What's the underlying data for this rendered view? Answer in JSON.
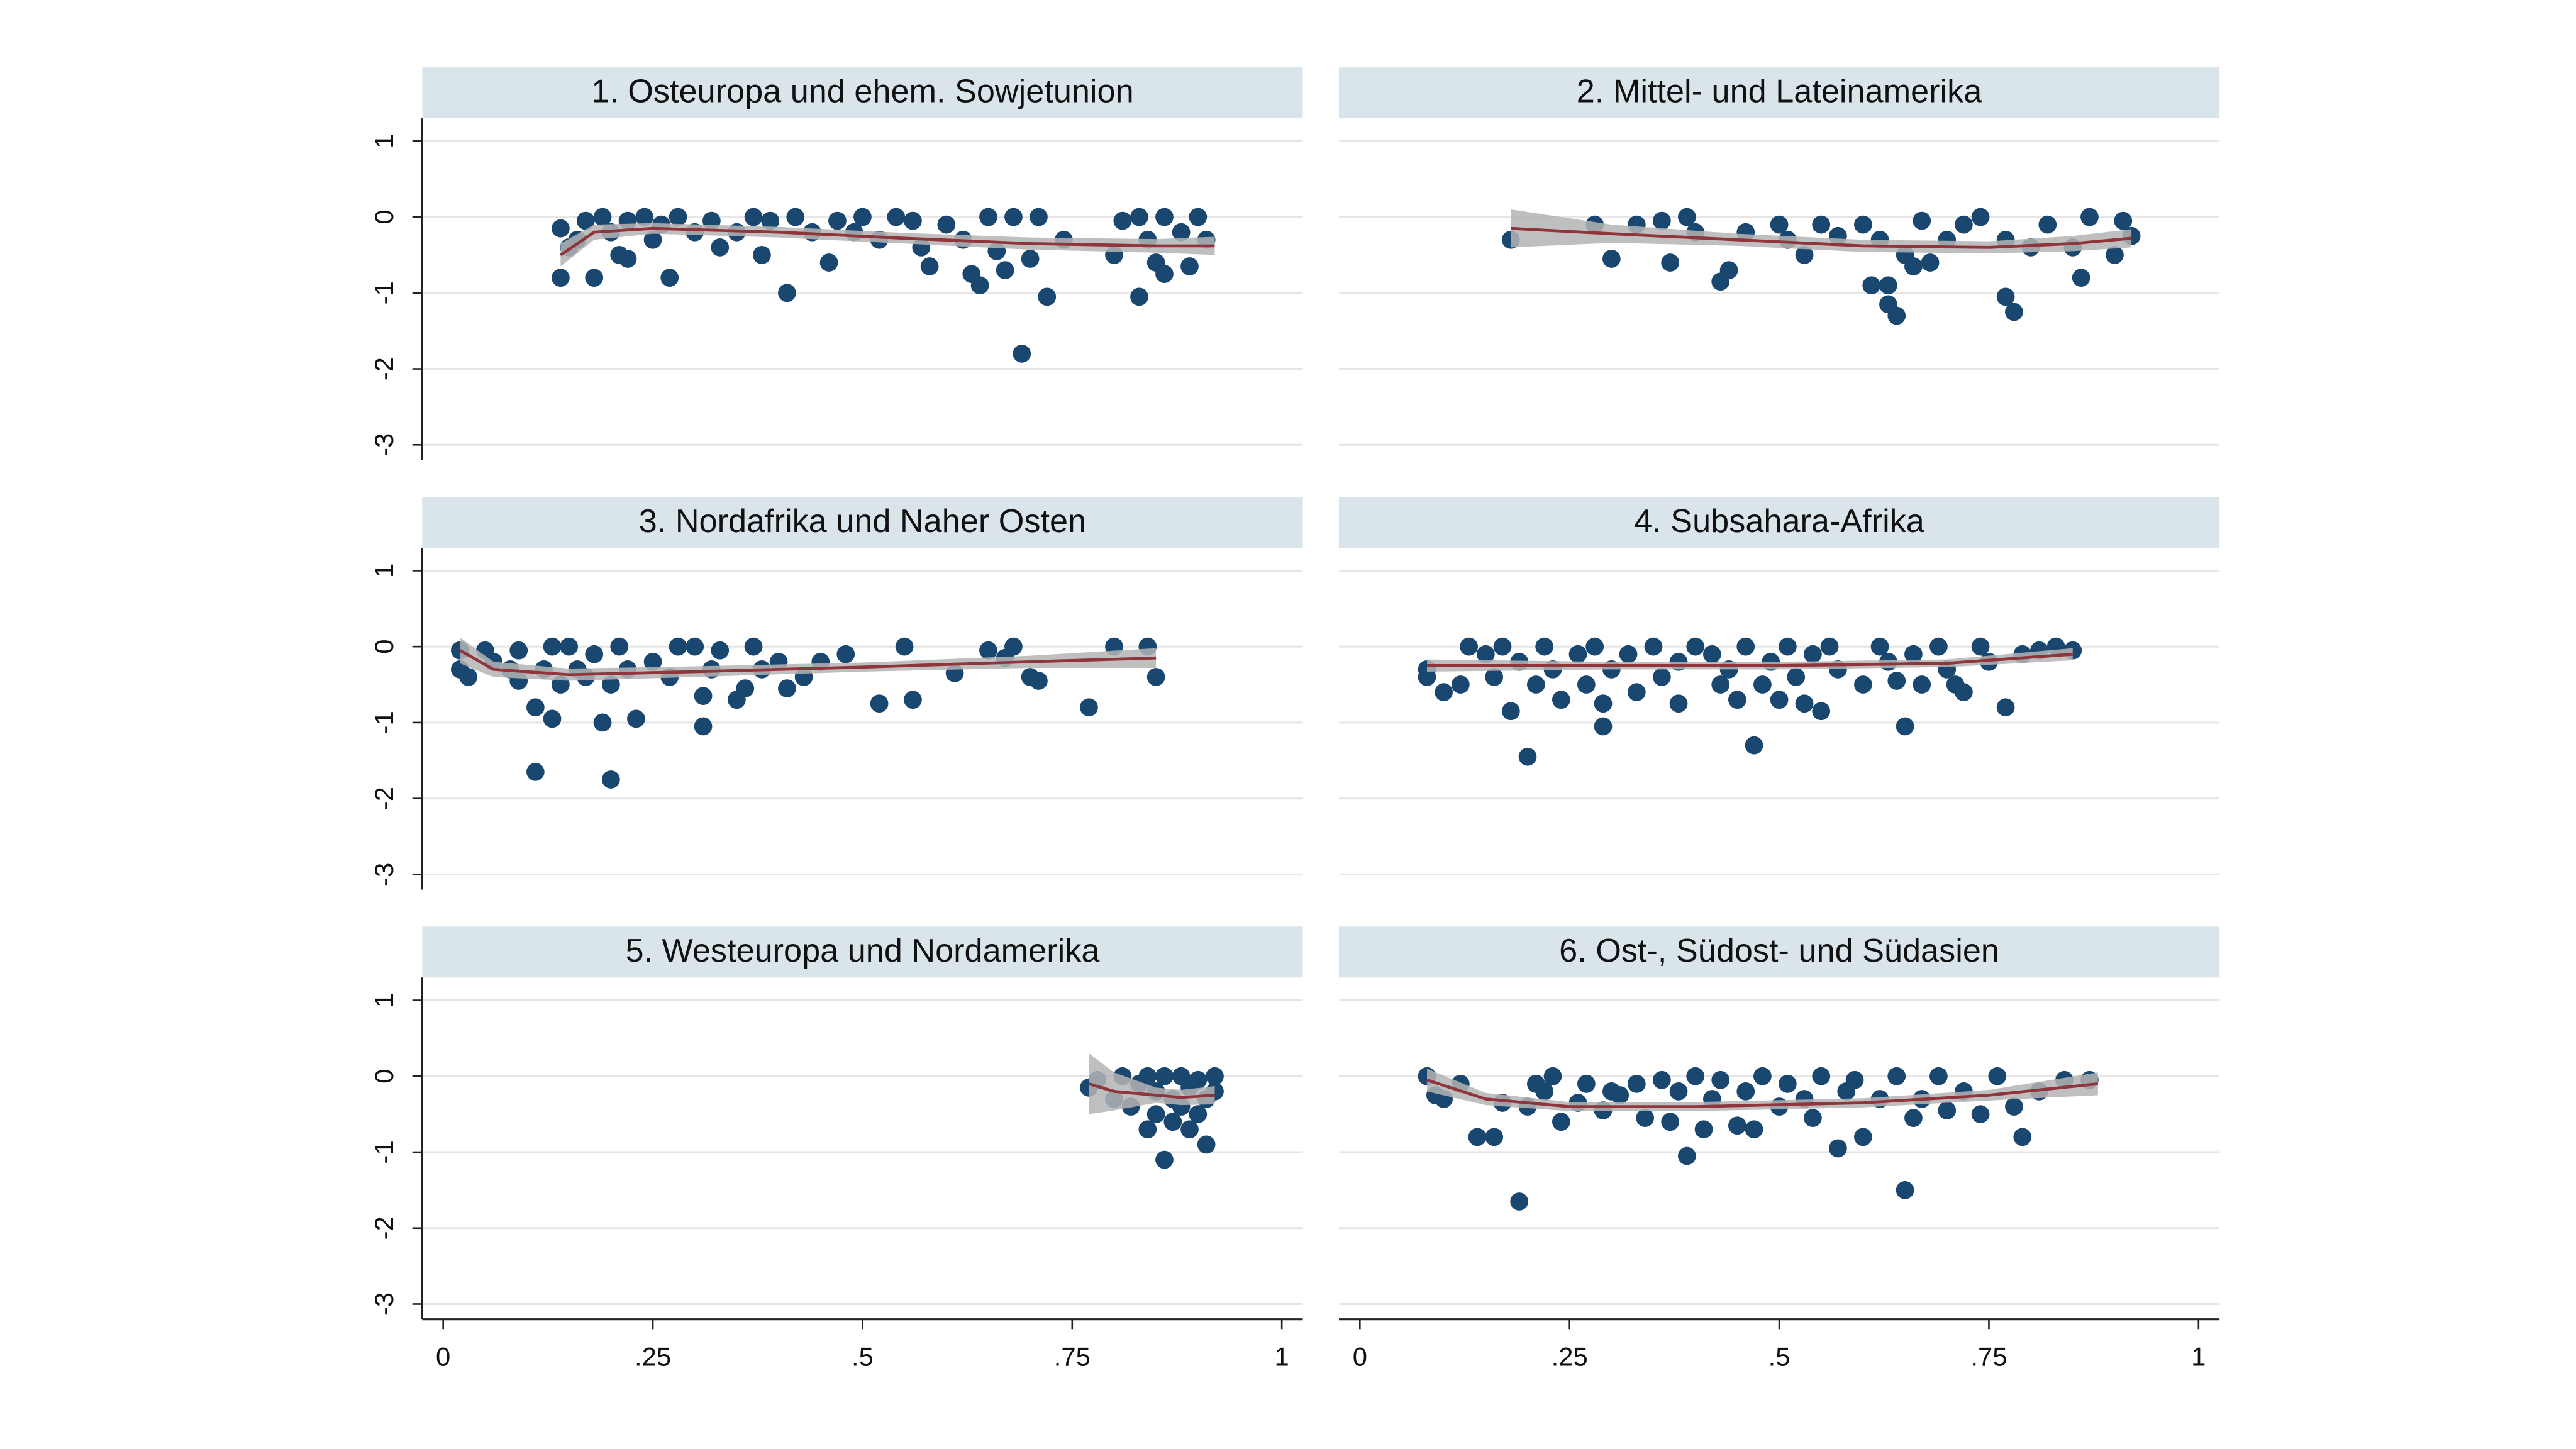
{
  "chart_data": [
    {
      "type": "scatter",
      "title": "1. Osteuropa und ehem. Sowjetunion",
      "xlim": [
        -0.025,
        1.025
      ],
      "ylim": [
        -3.2,
        1.3
      ],
      "yticks": [
        1,
        0,
        -1,
        -2,
        -3
      ],
      "ytick_labels": true,
      "grid": true,
      "series": [
        {
          "type": "band",
          "color": "#b4b4b4",
          "x": [
            0.14,
            0.18,
            0.25,
            0.4,
            0.55,
            0.7,
            0.85,
            0.92
          ],
          "lower": [
            -0.65,
            -0.3,
            -0.22,
            -0.27,
            -0.35,
            -0.43,
            -0.47,
            -0.5
          ],
          "upper": [
            -0.35,
            -0.1,
            -0.08,
            -0.13,
            -0.21,
            -0.27,
            -0.29,
            -0.26
          ]
        },
        {
          "type": "line",
          "color": "#90353b",
          "x": [
            0.14,
            0.18,
            0.25,
            0.4,
            0.55,
            0.7,
            0.85,
            0.92
          ],
          "values": [
            -0.5,
            -0.2,
            -0.15,
            -0.2,
            -0.28,
            -0.35,
            -0.38,
            -0.38
          ]
        },
        {
          "type": "scatter",
          "color": "#1a476f",
          "x": [
            0.14,
            0.14,
            0.15,
            0.16,
            0.17,
            0.18,
            0.19,
            0.2,
            0.21,
            0.22,
            0.22,
            0.24,
            0.25,
            0.26,
            0.27,
            0.28,
            0.3,
            0.32,
            0.33,
            0.35,
            0.37,
            0.38,
            0.39,
            0.41,
            0.42,
            0.44,
            0.46,
            0.47,
            0.49,
            0.5,
            0.52,
            0.54,
            0.56,
            0.57,
            0.58,
            0.6,
            0.62,
            0.63,
            0.64,
            0.65,
            0.66,
            0.67,
            0.68,
            0.69,
            0.7,
            0.71,
            0.72,
            0.74,
            0.8,
            0.81,
            0.83,
            0.83,
            0.84,
            0.85,
            0.86,
            0.86,
            0.88,
            0.89,
            0.9,
            0.91
          ],
          "values": [
            -0.15,
            -0.8,
            -0.4,
            -0.3,
            -0.05,
            -0.8,
            0,
            -0.2,
            -0.5,
            -0.05,
            -0.55,
            0,
            -0.3,
            -0.1,
            -0.8,
            0,
            -0.2,
            -0.05,
            -0.4,
            -0.2,
            0,
            -0.5,
            -0.05,
            -1.0,
            0,
            -0.2,
            -0.6,
            -0.05,
            -0.2,
            0,
            -0.3,
            0,
            -0.05,
            -0.4,
            -0.65,
            -0.1,
            -0.3,
            -0.75,
            -0.9,
            0,
            -0.45,
            -0.7,
            0,
            -1.8,
            -0.55,
            0,
            -1.05,
            -0.3,
            -0.5,
            -0.05,
            0,
            -1.05,
            -0.3,
            -0.6,
            0,
            -0.75,
            -0.2,
            -0.65,
            0,
            -0.3
          ]
        }
      ]
    },
    {
      "type": "scatter",
      "title": "2. Mittel- und Lateinamerika",
      "xlim": [
        -0.025,
        1.025
      ],
      "ylim": [
        -3.2,
        1.3
      ],
      "yticks": [
        1,
        0,
        -1,
        -2,
        -3
      ],
      "ytick_labels": false,
      "grid": true,
      "series": [
        {
          "type": "band",
          "color": "#b4b4b4",
          "x": [
            0.18,
            0.3,
            0.45,
            0.6,
            0.75,
            0.85,
            0.92
          ],
          "lower": [
            -0.4,
            -0.34,
            -0.38,
            -0.46,
            -0.48,
            -0.45,
            -0.4
          ],
          "upper": [
            0.1,
            -0.1,
            -0.22,
            -0.3,
            -0.32,
            -0.25,
            -0.16
          ]
        },
        {
          "type": "line",
          "color": "#90353b",
          "x": [
            0.18,
            0.3,
            0.45,
            0.6,
            0.75,
            0.85,
            0.92
          ],
          "values": [
            -0.15,
            -0.22,
            -0.3,
            -0.38,
            -0.4,
            -0.35,
            -0.28
          ]
        },
        {
          "type": "scatter",
          "color": "#1a476f",
          "x": [
            0.18,
            0.28,
            0.3,
            0.33,
            0.36,
            0.37,
            0.39,
            0.4,
            0.43,
            0.44,
            0.46,
            0.5,
            0.51,
            0.53,
            0.55,
            0.57,
            0.6,
            0.61,
            0.62,
            0.63,
            0.63,
            0.64,
            0.65,
            0.66,
            0.67,
            0.68,
            0.7,
            0.72,
            0.74,
            0.77,
            0.77,
            0.78,
            0.8,
            0.82,
            0.85,
            0.86,
            0.87,
            0.9,
            0.91,
            0.92
          ],
          "values": [
            -0.3,
            -0.1,
            -0.55,
            -0.1,
            -0.05,
            -0.6,
            0,
            -0.2,
            -0.85,
            -0.7,
            -0.2,
            -0.1,
            -0.3,
            -0.5,
            -0.1,
            -0.25,
            -0.1,
            -0.9,
            -0.3,
            -0.9,
            -1.15,
            -1.3,
            -0.5,
            -0.65,
            -0.05,
            -0.6,
            -0.3,
            -0.1,
            0,
            -0.3,
            -1.05,
            -1.25,
            -0.4,
            -0.1,
            -0.4,
            -0.8,
            0,
            -0.5,
            -0.05,
            -0.25
          ]
        }
      ]
    },
    {
      "type": "scatter",
      "title": "3. Nordafrika und Naher Osten",
      "xlim": [
        -0.025,
        1.025
      ],
      "ylim": [
        -3.2,
        1.3
      ],
      "yticks": [
        1,
        0,
        -1,
        -2,
        -3
      ],
      "ytick_labels": true,
      "grid": true,
      "series": [
        {
          "type": "band",
          "color": "#b4b4b4",
          "x": [
            0.02,
            0.06,
            0.15,
            0.3,
            0.5,
            0.7,
            0.85
          ],
          "lower": [
            -0.22,
            -0.4,
            -0.45,
            -0.4,
            -0.33,
            -0.28,
            -0.28
          ],
          "upper": [
            0.12,
            -0.2,
            -0.29,
            -0.26,
            -0.21,
            -0.12,
            -0.02
          ]
        },
        {
          "type": "line",
          "color": "#90353b",
          "x": [
            0.02,
            0.06,
            0.15,
            0.3,
            0.5,
            0.7,
            0.85
          ],
          "values": [
            -0.05,
            -0.3,
            -0.37,
            -0.33,
            -0.27,
            -0.2,
            -0.15
          ]
        },
        {
          "type": "scatter",
          "color": "#1a476f",
          "x": [
            0.02,
            0.02,
            0.03,
            0.05,
            0.06,
            0.08,
            0.09,
            0.09,
            0.11,
            0.11,
            0.12,
            0.13,
            0.13,
            0.14,
            0.15,
            0.16,
            0.17,
            0.18,
            0.19,
            0.2,
            0.2,
            0.21,
            0.22,
            0.23,
            0.25,
            0.27,
            0.28,
            0.3,
            0.31,
            0.31,
            0.32,
            0.33,
            0.35,
            0.36,
            0.37,
            0.38,
            0.4,
            0.41,
            0.43,
            0.45,
            0.48,
            0.52,
            0.55,
            0.56,
            0.61,
            0.65,
            0.67,
            0.68,
            0.7,
            0.71,
            0.77,
            0.8,
            0.84,
            0.85
          ],
          "values": [
            -0.05,
            -0.3,
            -0.4,
            -0.05,
            -0.2,
            -0.3,
            -0.45,
            -0.05,
            -0.8,
            -1.65,
            -0.3,
            0,
            -0.95,
            -0.5,
            0,
            -0.3,
            -0.4,
            -0.1,
            -1.0,
            -1.75,
            -0.5,
            0,
            -0.3,
            -0.95,
            -0.2,
            -0.4,
            0,
            0,
            -0.65,
            -1.05,
            -0.3,
            -0.05,
            -0.7,
            -0.55,
            0,
            -0.3,
            -0.2,
            -0.55,
            -0.4,
            -0.2,
            -0.1,
            -0.75,
            0,
            -0.7,
            -0.35,
            -0.05,
            -0.15,
            0,
            -0.4,
            -0.45,
            -0.8,
            0,
            0,
            -0.4
          ]
        }
      ]
    },
    {
      "type": "scatter",
      "title": "4. Subsahara-Afrika",
      "xlim": [
        -0.025,
        1.025
      ],
      "ylim": [
        -3.2,
        1.3
      ],
      "yticks": [
        1,
        0,
        -1,
        -2,
        -3
      ],
      "ytick_labels": false,
      "grid": true,
      "series": [
        {
          "type": "band",
          "color": "#b4b4b4",
          "x": [
            0.08,
            0.3,
            0.5,
            0.7,
            0.85
          ],
          "lower": [
            -0.33,
            -0.3,
            -0.3,
            -0.27,
            -0.18
          ],
          "upper": [
            -0.17,
            -0.2,
            -0.2,
            -0.17,
            -0.02
          ]
        },
        {
          "type": "line",
          "color": "#90353b",
          "x": [
            0.08,
            0.3,
            0.5,
            0.7,
            0.85
          ],
          "values": [
            -0.25,
            -0.25,
            -0.25,
            -0.22,
            -0.1
          ]
        },
        {
          "type": "scatter",
          "color": "#1a476f",
          "x": [
            0.08,
            0.08,
            0.1,
            0.12,
            0.13,
            0.15,
            0.16,
            0.17,
            0.18,
            0.19,
            0.2,
            0.21,
            0.22,
            0.23,
            0.24,
            0.26,
            0.27,
            0.28,
            0.29,
            0.29,
            0.3,
            0.32,
            0.33,
            0.35,
            0.36,
            0.38,
            0.38,
            0.4,
            0.42,
            0.43,
            0.44,
            0.45,
            0.46,
            0.47,
            0.48,
            0.49,
            0.5,
            0.51,
            0.52,
            0.53,
            0.54,
            0.55,
            0.56,
            0.57,
            0.6,
            0.62,
            0.63,
            0.64,
            0.65,
            0.66,
            0.67,
            0.69,
            0.7,
            0.71,
            0.72,
            0.74,
            0.75,
            0.77,
            0.79,
            0.81,
            0.83,
            0.85
          ],
          "values": [
            -0.3,
            -0.4,
            -0.6,
            -0.5,
            0,
            -0.1,
            -0.4,
            0,
            -0.85,
            -0.2,
            -1.45,
            -0.5,
            0,
            -0.3,
            -0.7,
            -0.1,
            -0.5,
            0,
            -0.75,
            -1.05,
            -0.3,
            -0.1,
            -0.6,
            0,
            -0.4,
            -0.2,
            -0.75,
            0,
            -0.1,
            -0.5,
            -0.3,
            -0.7,
            0,
            -1.3,
            -0.5,
            -0.2,
            -0.7,
            0,
            -0.4,
            -0.75,
            -0.1,
            -0.85,
            0,
            -0.3,
            -0.5,
            0,
            -0.2,
            -0.45,
            -1.05,
            -0.1,
            -0.5,
            0,
            -0.3,
            -0.5,
            -0.6,
            0,
            -0.2,
            -0.8,
            -0.1,
            -0.05,
            0,
            -0.05
          ]
        }
      ]
    },
    {
      "type": "scatter",
      "title": "5. Westeuropa und Nordamerika",
      "xlim": [
        -0.025,
        1.025
      ],
      "ylim": [
        -3.2,
        1.3
      ],
      "yticks": [
        1,
        0,
        -1,
        -2,
        -3
      ],
      "ytick_labels": true,
      "grid": true,
      "xticks": [
        0,
        {
          "value": 0.25,
          "label": ".25"
        },
        {
          "value": 0.5,
          "label": ".5"
        },
        {
          "value": 0.75,
          "label": ".75"
        },
        1
      ],
      "series": [
        {
          "type": "band",
          "color": "#b4b4b4",
          "x": [
            0.77,
            0.8,
            0.85,
            0.88,
            0.92
          ],
          "lower": [
            -0.5,
            -0.45,
            -0.35,
            -0.38,
            -0.37
          ],
          "upper": [
            0.3,
            0.05,
            -0.15,
            -0.18,
            -0.13
          ]
        },
        {
          "type": "line",
          "color": "#90353b",
          "x": [
            0.77,
            0.8,
            0.85,
            0.88,
            0.92
          ],
          "values": [
            -0.1,
            -0.2,
            -0.25,
            -0.28,
            -0.25
          ]
        },
        {
          "type": "scatter",
          "color": "#1a476f",
          "x": [
            0.77,
            0.78,
            0.8,
            0.81,
            0.82,
            0.83,
            0.84,
            0.84,
            0.85,
            0.85,
            0.86,
            0.86,
            0.87,
            0.87,
            0.88,
            0.88,
            0.89,
            0.89,
            0.9,
            0.9,
            0.91,
            0.91,
            0.92,
            0.92
          ],
          "values": [
            -0.15,
            -0.05,
            -0.3,
            0,
            -0.4,
            -0.1,
            -0.7,
            0,
            -0.5,
            -0.2,
            -1.1,
            0,
            -0.6,
            -0.3,
            0,
            -0.4,
            -0.15,
            -0.7,
            -0.05,
            -0.5,
            -0.3,
            -0.9,
            0,
            -0.2
          ]
        }
      ]
    },
    {
      "type": "scatter",
      "title": "6. Ost-, Südost- und Südasien",
      "xlim": [
        -0.025,
        1.025
      ],
      "ylim": [
        -3.2,
        1.3
      ],
      "yticks": [
        1,
        0,
        -1,
        -2,
        -3
      ],
      "ytick_labels": false,
      "grid": true,
      "xticks": [
        0,
        {
          "value": 0.25,
          "label": ".25"
        },
        {
          "value": 0.5,
          "label": ".5"
        },
        {
          "value": 0.75,
          "label": ".75"
        },
        1
      ],
      "series": [
        {
          "type": "band",
          "color": "#b4b4b4",
          "x": [
            0.08,
            0.15,
            0.25,
            0.4,
            0.6,
            0.75,
            0.88
          ],
          "lower": [
            -0.2,
            -0.38,
            -0.46,
            -0.46,
            -0.41,
            -0.32,
            -0.25
          ],
          "upper": [
            0.1,
            -0.22,
            -0.34,
            -0.34,
            -0.29,
            -0.18,
            0.05
          ]
        },
        {
          "type": "line",
          "color": "#90353b",
          "x": [
            0.08,
            0.15,
            0.25,
            0.4,
            0.6,
            0.75,
            0.88
          ],
          "values": [
            -0.05,
            -0.3,
            -0.4,
            -0.4,
            -0.35,
            -0.25,
            -0.1
          ]
        },
        {
          "type": "scatter",
          "color": "#1a476f",
          "x": [
            0.08,
            0.09,
            0.1,
            0.12,
            0.14,
            0.16,
            0.17,
            0.19,
            0.2,
            0.21,
            0.22,
            0.23,
            0.24,
            0.26,
            0.27,
            0.29,
            0.3,
            0.31,
            0.33,
            0.34,
            0.36,
            0.37,
            0.38,
            0.39,
            0.4,
            0.41,
            0.42,
            0.43,
            0.45,
            0.46,
            0.47,
            0.48,
            0.5,
            0.51,
            0.53,
            0.54,
            0.55,
            0.57,
            0.58,
            0.59,
            0.6,
            0.62,
            0.64,
            0.65,
            0.66,
            0.67,
            0.69,
            0.7,
            0.72,
            0.74,
            0.76,
            0.78,
            0.79,
            0.81,
            0.84,
            0.87
          ],
          "values": [
            0,
            -0.25,
            -0.3,
            -0.1,
            -0.8,
            -0.8,
            -0.35,
            -1.65,
            -0.4,
            -0.1,
            -0.2,
            0,
            -0.6,
            -0.35,
            -0.1,
            -0.45,
            -0.2,
            -0.25,
            -0.1,
            -0.55,
            -0.05,
            -0.6,
            -0.2,
            -1.05,
            0,
            -0.7,
            -0.3,
            -0.05,
            -0.65,
            -0.2,
            -0.7,
            0,
            -0.4,
            -0.1,
            -0.3,
            -0.55,
            0,
            -0.95,
            -0.2,
            -0.05,
            -0.8,
            -0.3,
            0,
            -1.5,
            -0.55,
            -0.3,
            0,
            -0.45,
            -0.2,
            -0.5,
            0,
            -0.4,
            -0.8,
            -0.2,
            -0.05,
            -0.05
          ]
        }
      ]
    }
  ]
}
